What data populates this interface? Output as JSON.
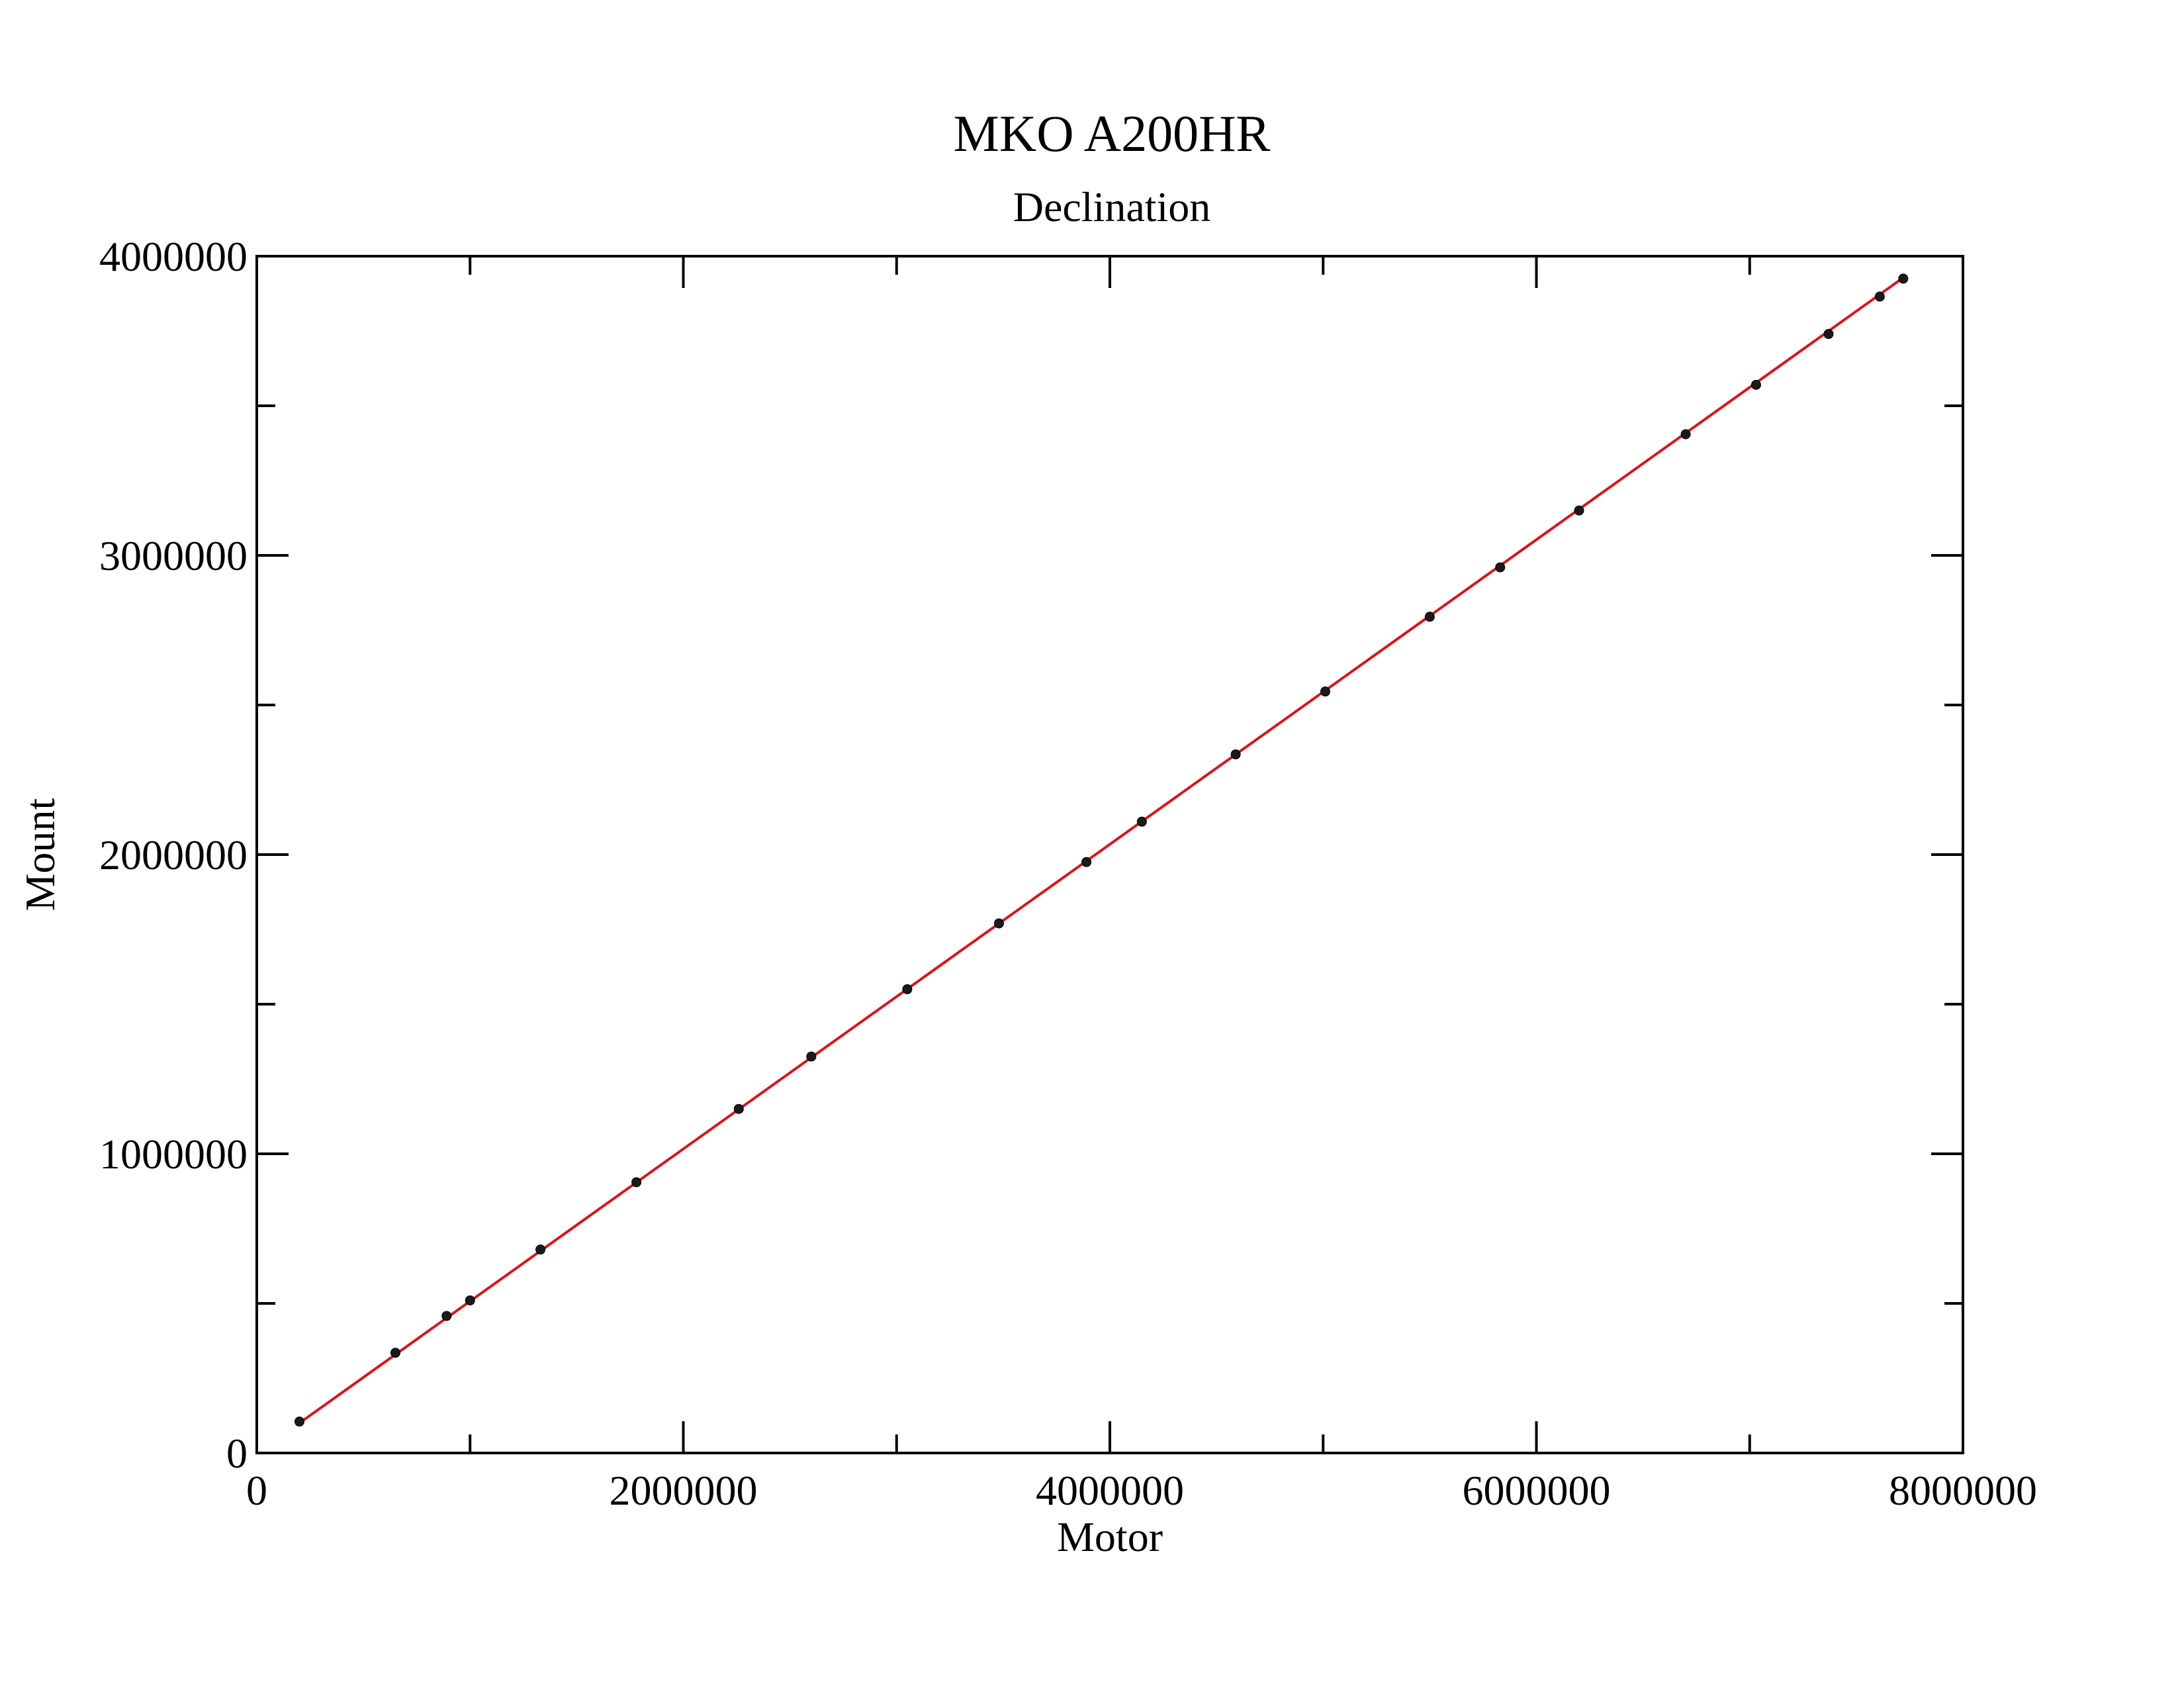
{
  "chart_data": {
    "type": "scatter",
    "title": "MKO A200HR",
    "subtitle": "Declination",
    "xlabel": "Motor",
    "ylabel": "Mount",
    "xlim": [
      0,
      8000000
    ],
    "ylim": [
      0,
      4000000
    ],
    "x_ticks": [
      0,
      2000000,
      4000000,
      6000000,
      8000000
    ],
    "x_tick_labels": [
      "0",
      "2000000",
      "4000000",
      "6000000",
      "8000000"
    ],
    "x_minor_ticks": [
      1000000,
      3000000,
      5000000,
      7000000
    ],
    "y_ticks": [
      0,
      1000000,
      2000000,
      3000000,
      4000000
    ],
    "y_tick_labels": [
      "0",
      "1000000",
      "2000000",
      "3000000",
      "4000000"
    ],
    "y_minor_ticks": [
      500000,
      1500000,
      2500000,
      3500000
    ],
    "grid": false,
    "colors": {
      "fit_line": "#d8151b",
      "points": "#1a1a1a",
      "axes": "#000000"
    },
    "series": [
      {
        "kind": "points",
        "x": [
          200000,
          650000,
          890000,
          1000000,
          1330000,
          1780000,
          2260000,
          2600000,
          3050000,
          3480000,
          3890000,
          4150000,
          4590000,
          5010000,
          5500000,
          5830000,
          6200000,
          6700000,
          7030000,
          7370000,
          7610000,
          7720000
        ],
        "y": [
          105000,
          335000,
          458000,
          510000,
          680000,
          905000,
          1150000,
          1325000,
          1550000,
          1770000,
          1975000,
          2110000,
          2335000,
          2545000,
          2795000,
          2960000,
          3150000,
          3405000,
          3570000,
          3740000,
          3865000,
          3925000
        ]
      },
      {
        "kind": "fit-line",
        "x": [
          200000,
          7720000
        ],
        "y": [
          100000,
          3928000
        ]
      }
    ]
  }
}
